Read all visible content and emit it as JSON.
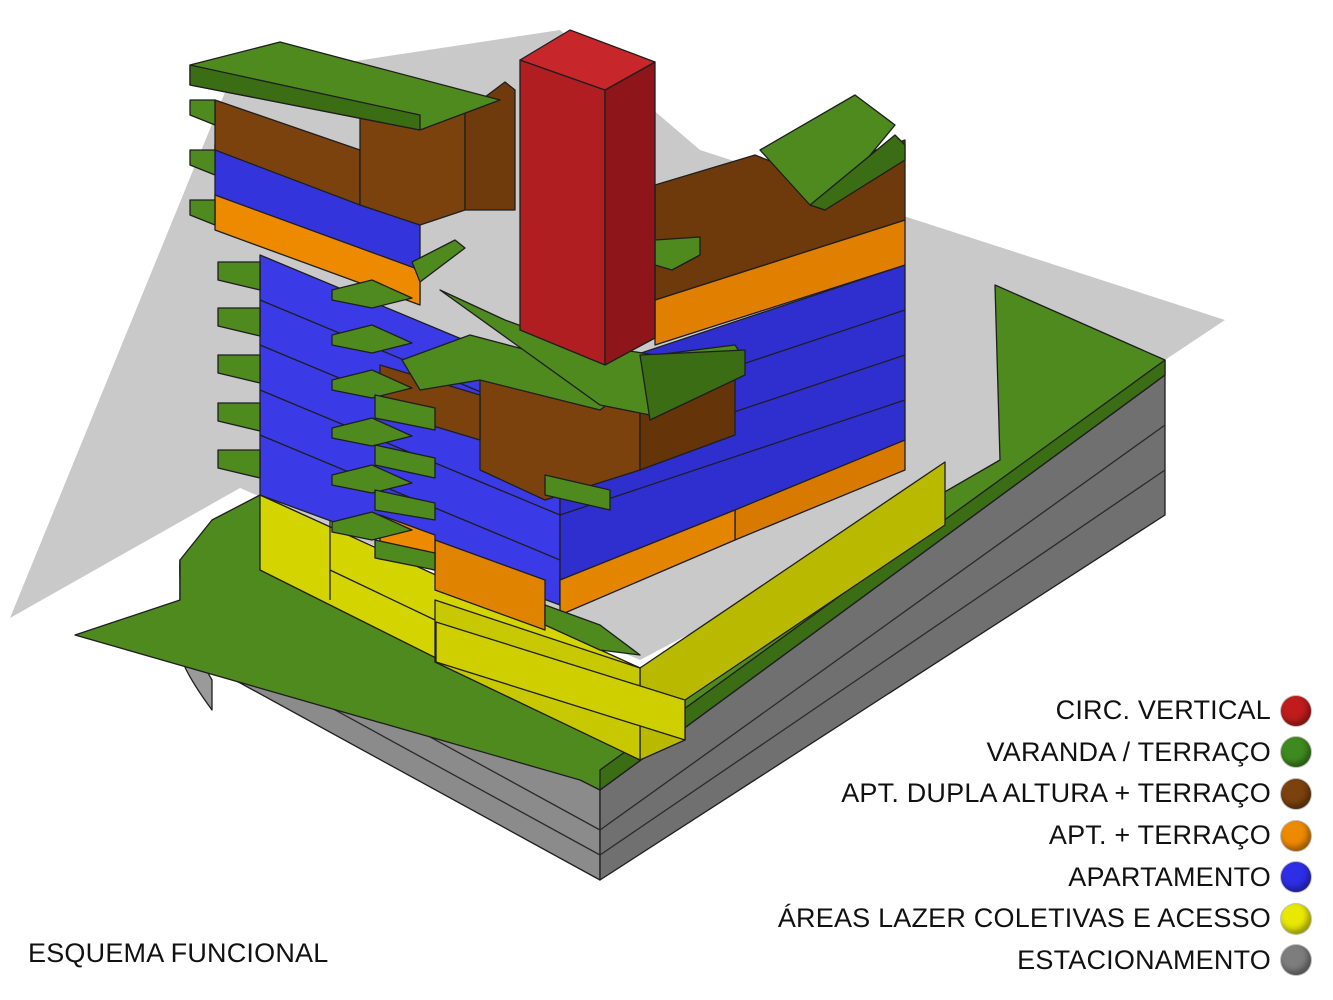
{
  "legend": {
    "items": [
      {
        "label": "CIRC. VERTICAL",
        "color": "#c01c1c"
      },
      {
        "label": "VARANDA / TERRAÇO",
        "color": "#3f8a1f"
      },
      {
        "label": "APT. DUPLA ALTURA + TERRAÇO",
        "color": "#7b420e"
      },
      {
        "label": "APT. + TERRAÇO",
        "color": "#ee8a00"
      },
      {
        "label": "APARTAMENTO",
        "color": "#2d2ee6"
      },
      {
        "label": "ÁREAS LAZER COLETIVAS E ACESSO",
        "color": "#e8e800"
      },
      {
        "label": "ESTACIONAMENTO",
        "color": "#7d7d7d"
      }
    ]
  },
  "caption": "ESQUEMA FUNCIONAL"
}
